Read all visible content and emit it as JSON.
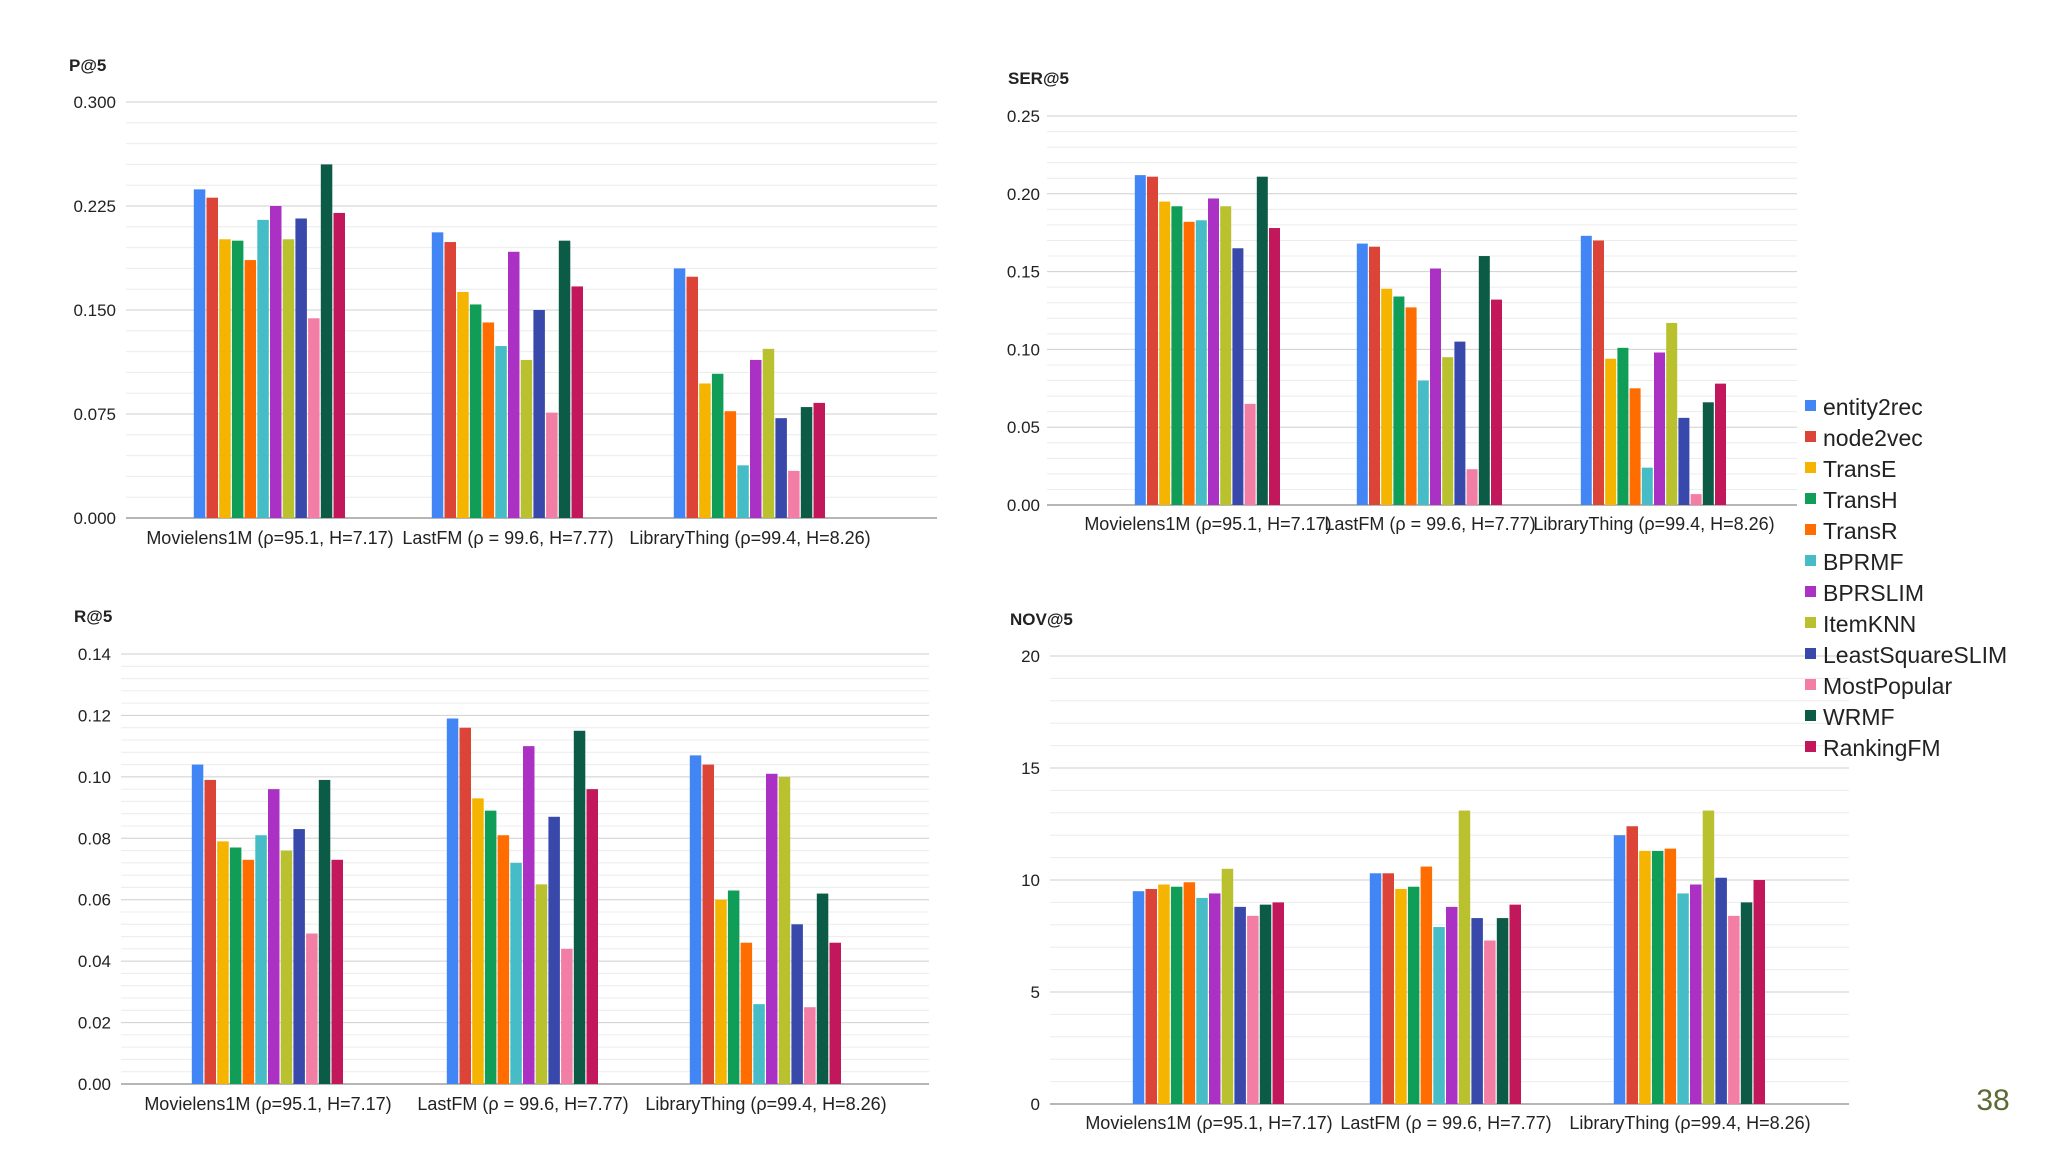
{
  "page_number": "38",
  "legend": [
    {
      "name": "entity2rec",
      "color": "#4285F4"
    },
    {
      "name": "node2vec",
      "color": "#DB4437"
    },
    {
      "name": "TransE",
      "color": "#F4B400"
    },
    {
      "name": "TransH",
      "color": "#0F9D58"
    },
    {
      "name": "TransR",
      "color": "#FF6D00"
    },
    {
      "name": "BPRMF",
      "color": "#46BDC6"
    },
    {
      "name": "BPRSLIM",
      "color": "#AB30C4"
    },
    {
      "name": "ItemKNN",
      "color": "#B9C12F"
    },
    {
      "name": "LeastSquareSLIM",
      "color": "#3949AB"
    },
    {
      "name": "MostPopular",
      "color": "#F27DA5"
    },
    {
      "name": "WRMF",
      "color": "#0B5B46"
    },
    {
      "name": "RankingFM",
      "color": "#C2185B"
    }
  ],
  "chart_data": [
    {
      "type": "bar",
      "title": "",
      "ylabel": "P@5",
      "xlabel": "",
      "ylim": [
        0,
        0.3
      ],
      "yticks": [
        "0.000",
        "0.075",
        "0.150",
        "0.225",
        "0.300"
      ],
      "categories": [
        "Movielens1M (ρ=95.1, H=7.17)",
        "LastFM (ρ = 99.6, H=7.77)",
        "LibraryThing (ρ=99.4, H=8.26)"
      ],
      "series": [
        {
          "name": "entity2rec",
          "values": [
            0.237,
            0.206,
            0.18
          ]
        },
        {
          "name": "node2vec",
          "values": [
            0.231,
            0.199,
            0.174
          ]
        },
        {
          "name": "TransE",
          "values": [
            0.201,
            0.163,
            0.097
          ]
        },
        {
          "name": "TransH",
          "values": [
            0.2,
            0.154,
            0.104
          ]
        },
        {
          "name": "TransR",
          "values": [
            0.186,
            0.141,
            0.077
          ]
        },
        {
          "name": "BPRMF",
          "values": [
            0.215,
            0.124,
            0.038
          ]
        },
        {
          "name": "BPRSLIM",
          "values": [
            0.225,
            0.192,
            0.114
          ]
        },
        {
          "name": "ItemKNN",
          "values": [
            0.201,
            0.114,
            0.122
          ]
        },
        {
          "name": "LeastSquareSLIM",
          "values": [
            0.216,
            0.15,
            0.072
          ]
        },
        {
          "name": "MostPopular",
          "values": [
            0.144,
            0.076,
            0.034
          ]
        },
        {
          "name": "WRMF",
          "values": [
            0.255,
            0.2,
            0.08
          ]
        },
        {
          "name": "RankingFM",
          "values": [
            0.22,
            0.167,
            0.083
          ]
        }
      ]
    },
    {
      "type": "bar",
      "title": "",
      "ylabel": "SER@5",
      "xlabel": "",
      "ylim": [
        0,
        0.25
      ],
      "yticks": [
        "0.00",
        "0.05",
        "0.10",
        "0.15",
        "0.20",
        "0.25"
      ],
      "categories": [
        "Movielens1M (ρ=95.1, H=7.17)",
        "LastFM (ρ = 99.6, H=7.77)",
        "LibraryThing (ρ=99.4, H=8.26)"
      ],
      "series": [
        {
          "name": "entity2rec",
          "values": [
            0.212,
            0.168,
            0.173
          ]
        },
        {
          "name": "node2vec",
          "values": [
            0.211,
            0.166,
            0.17
          ]
        },
        {
          "name": "TransE",
          "values": [
            0.195,
            0.139,
            0.094
          ]
        },
        {
          "name": "TransH",
          "values": [
            0.192,
            0.134,
            0.101
          ]
        },
        {
          "name": "TransR",
          "values": [
            0.182,
            0.127,
            0.075
          ]
        },
        {
          "name": "BPRMF",
          "values": [
            0.183,
            0.08,
            0.024
          ]
        },
        {
          "name": "BPRSLIM",
          "values": [
            0.197,
            0.152,
            0.098
          ]
        },
        {
          "name": "ItemKNN",
          "values": [
            0.192,
            0.095,
            0.117
          ]
        },
        {
          "name": "LeastSquareSLIM",
          "values": [
            0.165,
            0.105,
            0.056
          ]
        },
        {
          "name": "MostPopular",
          "values": [
            0.065,
            0.023,
            0.007
          ]
        },
        {
          "name": "WRMF",
          "values": [
            0.211,
            0.16,
            0.066
          ]
        },
        {
          "name": "RankingFM",
          "values": [
            0.178,
            0.132,
            0.078
          ]
        }
      ]
    },
    {
      "type": "bar",
      "title": "",
      "ylabel": "R@5",
      "xlabel": "",
      "ylim": [
        0,
        0.14
      ],
      "yticks": [
        "0.00",
        "0.02",
        "0.04",
        "0.06",
        "0.08",
        "0.10",
        "0.12",
        "0.14"
      ],
      "categories": [
        "Movielens1M (ρ=95.1, H=7.17)",
        "LastFM (ρ = 99.6, H=7.77)",
        "LibraryThing (ρ=99.4, H=8.26)"
      ],
      "series": [
        {
          "name": "entity2rec",
          "values": [
            0.104,
            0.119,
            0.107
          ]
        },
        {
          "name": "node2vec",
          "values": [
            0.099,
            0.116,
            0.104
          ]
        },
        {
          "name": "TransE",
          "values": [
            0.079,
            0.093,
            0.06
          ]
        },
        {
          "name": "TransH",
          "values": [
            0.077,
            0.089,
            0.063
          ]
        },
        {
          "name": "TransR",
          "values": [
            0.073,
            0.081,
            0.046
          ]
        },
        {
          "name": "BPRMF",
          "values": [
            0.081,
            0.072,
            0.026
          ]
        },
        {
          "name": "BPRSLIM",
          "values": [
            0.096,
            0.11,
            0.101
          ]
        },
        {
          "name": "ItemKNN",
          "values": [
            0.076,
            0.065,
            0.1
          ]
        },
        {
          "name": "LeastSquareSLIM",
          "values": [
            0.083,
            0.087,
            0.052
          ]
        },
        {
          "name": "MostPopular",
          "values": [
            0.049,
            0.044,
            0.025
          ]
        },
        {
          "name": "WRMF",
          "values": [
            0.099,
            0.115,
            0.062
          ]
        },
        {
          "name": "RankingFM",
          "values": [
            0.073,
            0.096,
            0.046
          ]
        }
      ]
    },
    {
      "type": "bar",
      "title": "",
      "ylabel": "NOV@5",
      "xlabel": "",
      "ylim": [
        0,
        20
      ],
      "yticks": [
        "0",
        "5",
        "10",
        "15",
        "20"
      ],
      "categories": [
        "Movielens1M (ρ=95.1, H=7.17)",
        "LastFM (ρ = 99.6, H=7.77)",
        "LibraryThing (ρ=99.4, H=8.26)"
      ],
      "series": [
        {
          "name": "entity2rec",
          "values": [
            9.5,
            10.3,
            12.0
          ]
        },
        {
          "name": "node2vec",
          "values": [
            9.6,
            10.3,
            12.4
          ]
        },
        {
          "name": "TransE",
          "values": [
            9.8,
            9.6,
            11.3
          ]
        },
        {
          "name": "TransH",
          "values": [
            9.7,
            9.7,
            11.3
          ]
        },
        {
          "name": "TransR",
          "values": [
            9.9,
            10.6,
            11.4
          ]
        },
        {
          "name": "BPRMF",
          "values": [
            9.2,
            7.9,
            9.4
          ]
        },
        {
          "name": "BPRSLIM",
          "values": [
            9.4,
            8.8,
            9.8
          ]
        },
        {
          "name": "ItemKNN",
          "values": [
            10.5,
            13.1,
            13.1
          ]
        },
        {
          "name": "LeastSquareSLIM",
          "values": [
            8.8,
            8.3,
            10.1
          ]
        },
        {
          "name": "MostPopular",
          "values": [
            8.4,
            7.3,
            8.4
          ]
        },
        {
          "name": "WRMF",
          "values": [
            8.9,
            8.3,
            9.0
          ]
        },
        {
          "name": "RankingFM",
          "values": [
            9.0,
            8.9,
            10.0
          ]
        }
      ]
    }
  ]
}
